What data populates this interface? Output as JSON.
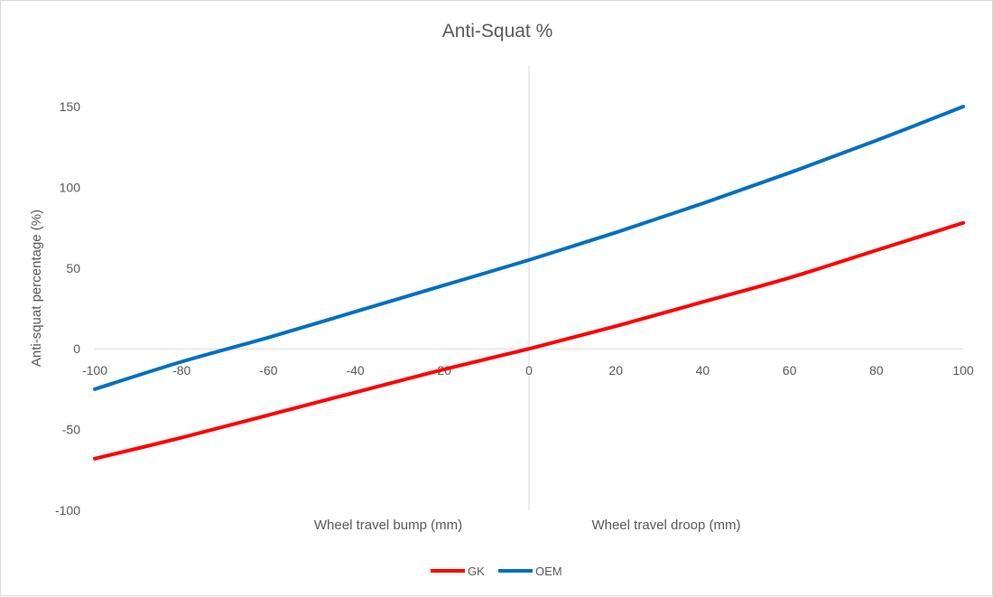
{
  "chart_data": {
    "type": "line",
    "title": "Anti-Squat %",
    "ylabel": "Anti-squat percentage (%)",
    "xlabel": "",
    "annotations": {
      "bump_label": "Wheel travel bump (mm)",
      "droop_label": "Wheel travel droop (mm)"
    },
    "xlim": [
      -100,
      100
    ],
    "ylim": [
      -100,
      150
    ],
    "x_ticks": [
      -100,
      -80,
      -60,
      -40,
      -20,
      0,
      20,
      40,
      60,
      80,
      100
    ],
    "y_ticks": [
      -100,
      -50,
      0,
      50,
      100,
      150
    ],
    "grid": false,
    "legend_position": "bottom",
    "x": [
      -100,
      -80,
      -60,
      -40,
      -20,
      0,
      20,
      40,
      60,
      80,
      100
    ],
    "series": [
      {
        "name": "GK",
        "color": "#ff0000",
        "values": [
          -68,
          -55,
          -41,
          -27,
          -13,
          0,
          14,
          29,
          44,
          61,
          78
        ]
      },
      {
        "name": "OEM",
        "color": "#0070c0",
        "values": [
          -25,
          -8,
          7,
          23,
          39,
          55,
          72,
          90,
          109,
          129,
          150
        ]
      }
    ]
  }
}
